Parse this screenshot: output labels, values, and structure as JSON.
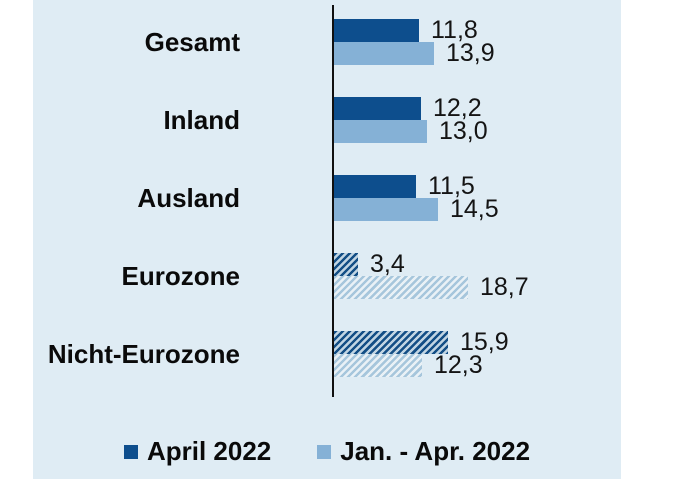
{
  "chart_data": {
    "type": "bar",
    "orientation": "horizontal",
    "title": "",
    "xlabel": "",
    "ylabel": "",
    "xlim": [
      0,
      20
    ],
    "grid": false,
    "legend_position": "bottom",
    "value_format": "german-decimal-comma",
    "categories": [
      "Gesamt",
      "Inland",
      "Ausland",
      "Eurozone",
      "Nicht-Eurozone"
    ],
    "series": [
      {
        "name": "April 2022",
        "color": "#0d4e8d",
        "values": [
          11.8,
          12.2,
          11.5,
          3.4,
          15.9
        ]
      },
      {
        "name": "Jan. - Apr. 2022",
        "color": "#85b1d6",
        "values": [
          13.9,
          13.0,
          14.5,
          18.7,
          12.3
        ]
      }
    ],
    "hatched_categories": [
      "Eurozone",
      "Nicht-Eurozone"
    ],
    "groups": [
      {
        "label": "Gesamt",
        "april": 11.8,
        "april_label": "11,8",
        "jan_apr": 13.9,
        "jan_apr_label": "13,9",
        "hatched": false
      },
      {
        "label": "Inland",
        "april": 12.2,
        "april_label": "12,2",
        "jan_apr": 13.0,
        "jan_apr_label": "13,0",
        "hatched": false
      },
      {
        "label": "Ausland",
        "april": 11.5,
        "april_label": "11,5",
        "jan_apr": 14.5,
        "jan_apr_label": "14,5",
        "hatched": false
      },
      {
        "label": "Eurozone",
        "april": 3.4,
        "april_label": "3,4",
        "jan_apr": 18.7,
        "jan_apr_label": "18,7",
        "hatched": true
      },
      {
        "label": "Nicht-Eurozone",
        "april": 15.9,
        "april_label": "15,9",
        "jan_apr": 12.3,
        "jan_apr_label": "12,3",
        "hatched": true
      }
    ]
  },
  "legend": {
    "items": [
      {
        "label": "April 2022",
        "color": "#0d4e8d"
      },
      {
        "label": "Jan. - Apr. 2022",
        "color": "#85b1d6"
      }
    ]
  },
  "colors": {
    "page_background": "#ffffff",
    "panel_background": "#dfecf4",
    "axis": "#101010",
    "dark_series": "#0d4e8d",
    "light_series": "#85b1d6",
    "dark_hatch_stripe": "#144f86",
    "dark_hatch_gap": "#c1d5e3",
    "light_hatch_stripe": "#a6c6dc",
    "light_hatch_gap": "#e9f1f6",
    "text": "#0a0a0a"
  }
}
